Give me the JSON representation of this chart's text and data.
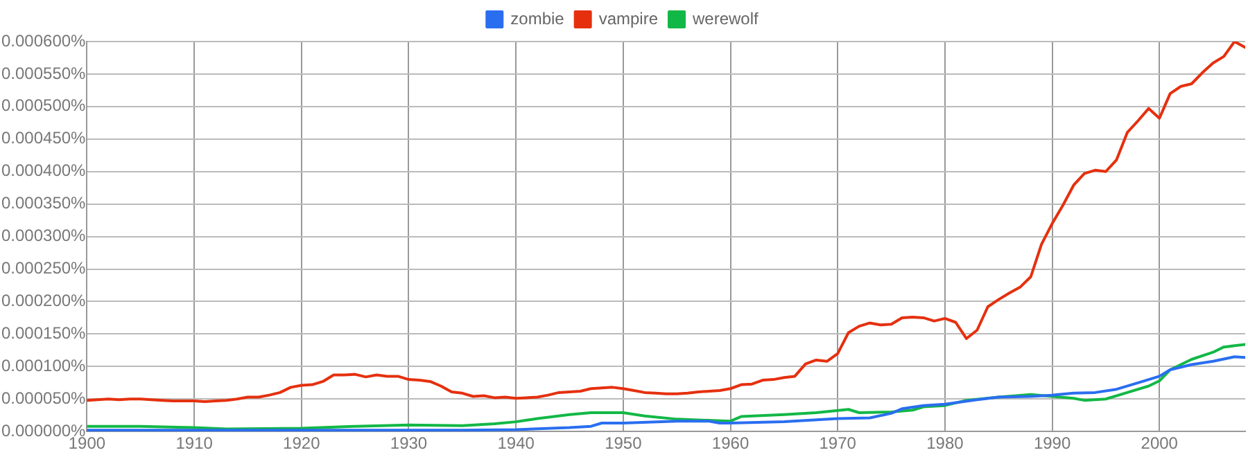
{
  "chart_data": {
    "type": "line",
    "legend": "top",
    "grid": true,
    "marker": "none",
    "line_style": "solid",
    "xlim": [
      1900,
      2008
    ],
    "xticks": [
      1900,
      1910,
      1920,
      1930,
      1940,
      1950,
      1960,
      1970,
      1980,
      1990,
      2000
    ],
    "ylim": [
      0,
      0.0006
    ],
    "yticks": [
      {
        "value": 0,
        "label": "0.000000%"
      },
      {
        "value": 5e-05,
        "label": "0.000050%"
      },
      {
        "value": 0.0001,
        "label": "0.000100%"
      },
      {
        "value": 0.00015,
        "label": "0.000150%"
      },
      {
        "value": 0.0002,
        "label": "0.000200%"
      },
      {
        "value": 0.00025,
        "label": "0.000250%"
      },
      {
        "value": 0.0003,
        "label": "0.000300%"
      },
      {
        "value": 0.00035,
        "label": "0.000350%"
      },
      {
        "value": 0.0004,
        "label": "0.000400%"
      },
      {
        "value": 0.00045,
        "label": "0.000450%"
      },
      {
        "value": 0.0005,
        "label": "0.000500%"
      },
      {
        "value": 0.00055,
        "label": "0.000550%"
      },
      {
        "value": 0.0006,
        "label": "0.000600%"
      }
    ],
    "series": [
      {
        "name": "zombie",
        "color": "#2a6ef0",
        "x": [
          1900,
          1935,
          1940,
          1945,
          1947,
          1948,
          1950,
          1955,
          1958,
          1959,
          1960,
          1965,
          1970,
          1973,
          1975,
          1976,
          1978,
          1980,
          1983,
          1985,
          1988,
          1990,
          1992,
          1994,
          1996,
          1998,
          2000,
          2001,
          2003,
          2005,
          2007,
          2008
        ],
        "values": [
          2e-06,
          2e-06,
          3e-06,
          6e-06,
          8e-06,
          1.3e-05,
          1.3e-05,
          1.6e-05,
          1.6e-05,
          1.3e-05,
          1.3e-05,
          1.5e-05,
          2e-05,
          2.1e-05,
          2.8e-05,
          3.5e-05,
          4e-05,
          4.2e-05,
          4.9e-05,
          5.3e-05,
          5.4e-05,
          5.6e-05,
          5.9e-05,
          6e-05,
          6.5e-05,
          7.5e-05,
          8.5e-05,
          9.5e-05,
          0.000103,
          0.000108,
          0.000115,
          0.000114
        ]
      },
      {
        "name": "vampire",
        "color": "#e5300e",
        "x": [
          1900,
          1901,
          1902,
          1903,
          1904,
          1905,
          1906,
          1907,
          1908,
          1909,
          1910,
          1911,
          1912,
          1913,
          1914,
          1915,
          1916,
          1917,
          1918,
          1919,
          1920,
          1921,
          1922,
          1923,
          1924,
          1925,
          1926,
          1927,
          1928,
          1929,
          1930,
          1931,
          1932,
          1933,
          1934,
          1935,
          1936,
          1937,
          1938,
          1939,
          1940,
          1941,
          1942,
          1943,
          1944,
          1945,
          1946,
          1947,
          1948,
          1949,
          1950,
          1951,
          1952,
          1953,
          1954,
          1955,
          1956,
          1957,
          1958,
          1959,
          1960,
          1961,
          1962,
          1963,
          1964,
          1965,
          1966,
          1967,
          1968,
          1969,
          1970,
          1971,
          1972,
          1973,
          1974,
          1975,
          1976,
          1977,
          1978,
          1979,
          1980,
          1981,
          1982,
          1983,
          1984,
          1985,
          1986,
          1987,
          1988,
          1989,
          1990,
          1991,
          1992,
          1993,
          1994,
          1995,
          1996,
          1997,
          1998,
          1999,
          2000,
          2001,
          2002,
          2003,
          2004,
          2005,
          2006,
          2007,
          2008
        ],
        "values": [
          4.8e-05,
          4.9e-05,
          5e-05,
          4.9e-05,
          5e-05,
          5e-05,
          4.9e-05,
          4.8e-05,
          4.7e-05,
          4.7e-05,
          4.7e-05,
          4.6e-05,
          4.7e-05,
          4.8e-05,
          5e-05,
          5.3e-05,
          5.3e-05,
          5.6e-05,
          6e-05,
          6.8e-05,
          7.1e-05,
          7.2e-05,
          7.7e-05,
          8.7e-05,
          8.7e-05,
          8.8e-05,
          8.4e-05,
          8.7e-05,
          8.5e-05,
          8.5e-05,
          8e-05,
          7.9e-05,
          7.7e-05,
          7e-05,
          6.1e-05,
          5.9e-05,
          5.4e-05,
          5.5e-05,
          5.2e-05,
          5.3e-05,
          5.1e-05,
          5.2e-05,
          5.3e-05,
          5.6e-05,
          6e-05,
          6.1e-05,
          6.2e-05,
          6.6e-05,
          6.7e-05,
          6.8e-05,
          6.6e-05,
          6.3e-05,
          6e-05,
          5.9e-05,
          5.8e-05,
          5.8e-05,
          5.9e-05,
          6.1e-05,
          6.2e-05,
          6.3e-05,
          6.6e-05,
          7.2e-05,
          7.3e-05,
          7.9e-05,
          8e-05,
          8.3e-05,
          8.5e-05,
          0.000104,
          0.00011,
          0.000108,
          0.00012,
          0.000152,
          0.000162,
          0.000167,
          0.000164,
          0.000165,
          0.000175,
          0.000176,
          0.000175,
          0.00017,
          0.000174,
          0.000168,
          0.000143,
          0.000156,
          0.000192,
          0.000203,
          0.000213,
          0.000222,
          0.000238,
          0.000288,
          0.00032,
          0.000348,
          0.000379,
          0.000397,
          0.000402,
          0.0004,
          0.000418,
          0.00046,
          0.000478,
          0.000497,
          0.000482,
          0.00052,
          0.000531,
          0.000535,
          0.000552,
          0.000567,
          0.000577,
          0.0006,
          0.000591
        ]
      },
      {
        "name": "werewolf",
        "color": "#12b846",
        "x": [
          1900,
          1905,
          1910,
          1913,
          1920,
          1925,
          1930,
          1935,
          1938,
          1940,
          1942,
          1945,
          1947,
          1950,
          1952,
          1955,
          1960,
          1961,
          1965,
          1968,
          1971,
          1972,
          1975,
          1977,
          1978,
          1980,
          1982,
          1985,
          1988,
          1990,
          1992,
          1993,
          1995,
          1997,
          1999,
          2000,
          2001,
          2003,
          2005,
          2006,
          2008
        ],
        "values": [
          8e-06,
          8e-06,
          6e-06,
          4e-06,
          5e-06,
          8e-06,
          1e-05,
          9e-06,
          1.2e-05,
          1.5e-05,
          2e-05,
          2.6e-05,
          2.9e-05,
          2.9e-05,
          2.4e-05,
          1.9e-05,
          1.6e-05,
          2.3e-05,
          2.6e-05,
          2.9e-05,
          3.4e-05,
          2.9e-05,
          3e-05,
          3.3e-05,
          3.8e-05,
          4e-05,
          4.8e-05,
          5.3e-05,
          5.7e-05,
          5.4e-05,
          5.1e-05,
          4.8e-05,
          5e-05,
          6e-05,
          7e-05,
          7.8e-05,
          9.5e-05,
          0.000111,
          0.000122,
          0.00013,
          0.000134
        ]
      }
    ]
  }
}
